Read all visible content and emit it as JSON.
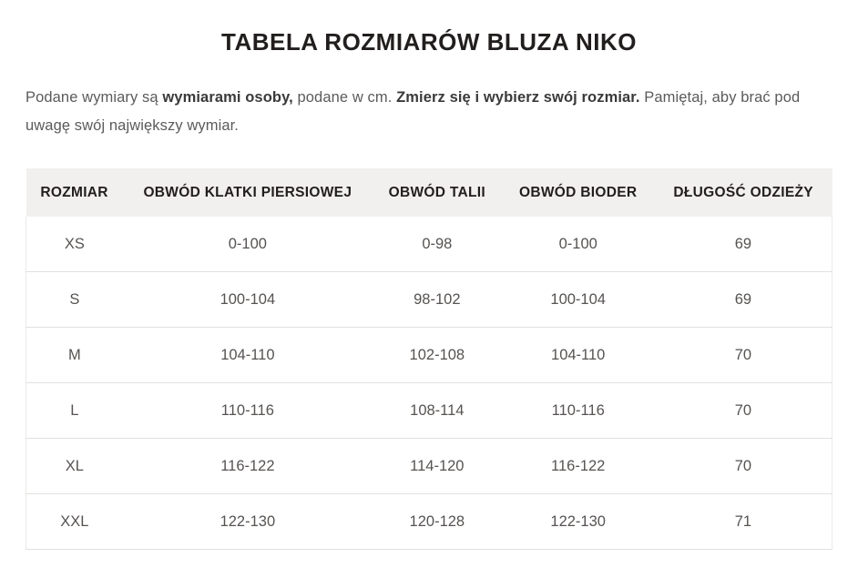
{
  "page": {
    "title": "TABELA ROZMIARÓW BLUZA NIKO"
  },
  "intro": {
    "segments": [
      {
        "text": "Podane wymiary są ",
        "bold": false
      },
      {
        "text": "wymiarami osoby,",
        "bold": true
      },
      {
        "text": " podane w cm. ",
        "bold": false
      },
      {
        "text": "Zmierz się i wybierz swój rozmiar.",
        "bold": true
      },
      {
        "text": " Pamiętaj, aby brać pod uwagę swój największy wymiar.",
        "bold": false
      }
    ]
  },
  "size_table": {
    "columns": [
      "ROZMIAR",
      "OBWÓD KLATKI PIERSIOWEJ",
      "OBWÓD TALII",
      "OBWÓD BIODER",
      "DŁUGOŚĆ ODZIEŻY"
    ],
    "rows": [
      [
        "XS",
        "0-100",
        "0-98",
        "0-100",
        "69"
      ],
      [
        "S",
        "100-104",
        "98-102",
        "100-104",
        "69"
      ],
      [
        "M",
        "104-110",
        "102-108",
        "104-110",
        "70"
      ],
      [
        "L",
        "110-116",
        "108-114",
        "110-116",
        "70"
      ],
      [
        "XL",
        "116-122",
        "114-120",
        "116-122",
        "70"
      ],
      [
        "XXL",
        "122-130",
        "120-128",
        "122-130",
        "71"
      ]
    ]
  },
  "colors": {
    "heading_text": "#221e1e",
    "body_text": "#5b5b5b",
    "body_text_bold": "#3a3a3a",
    "cell_text": "#565351",
    "header_background": "#f1f0ef",
    "row_divider": "#e3e1df",
    "page_background": "#ffffff"
  }
}
